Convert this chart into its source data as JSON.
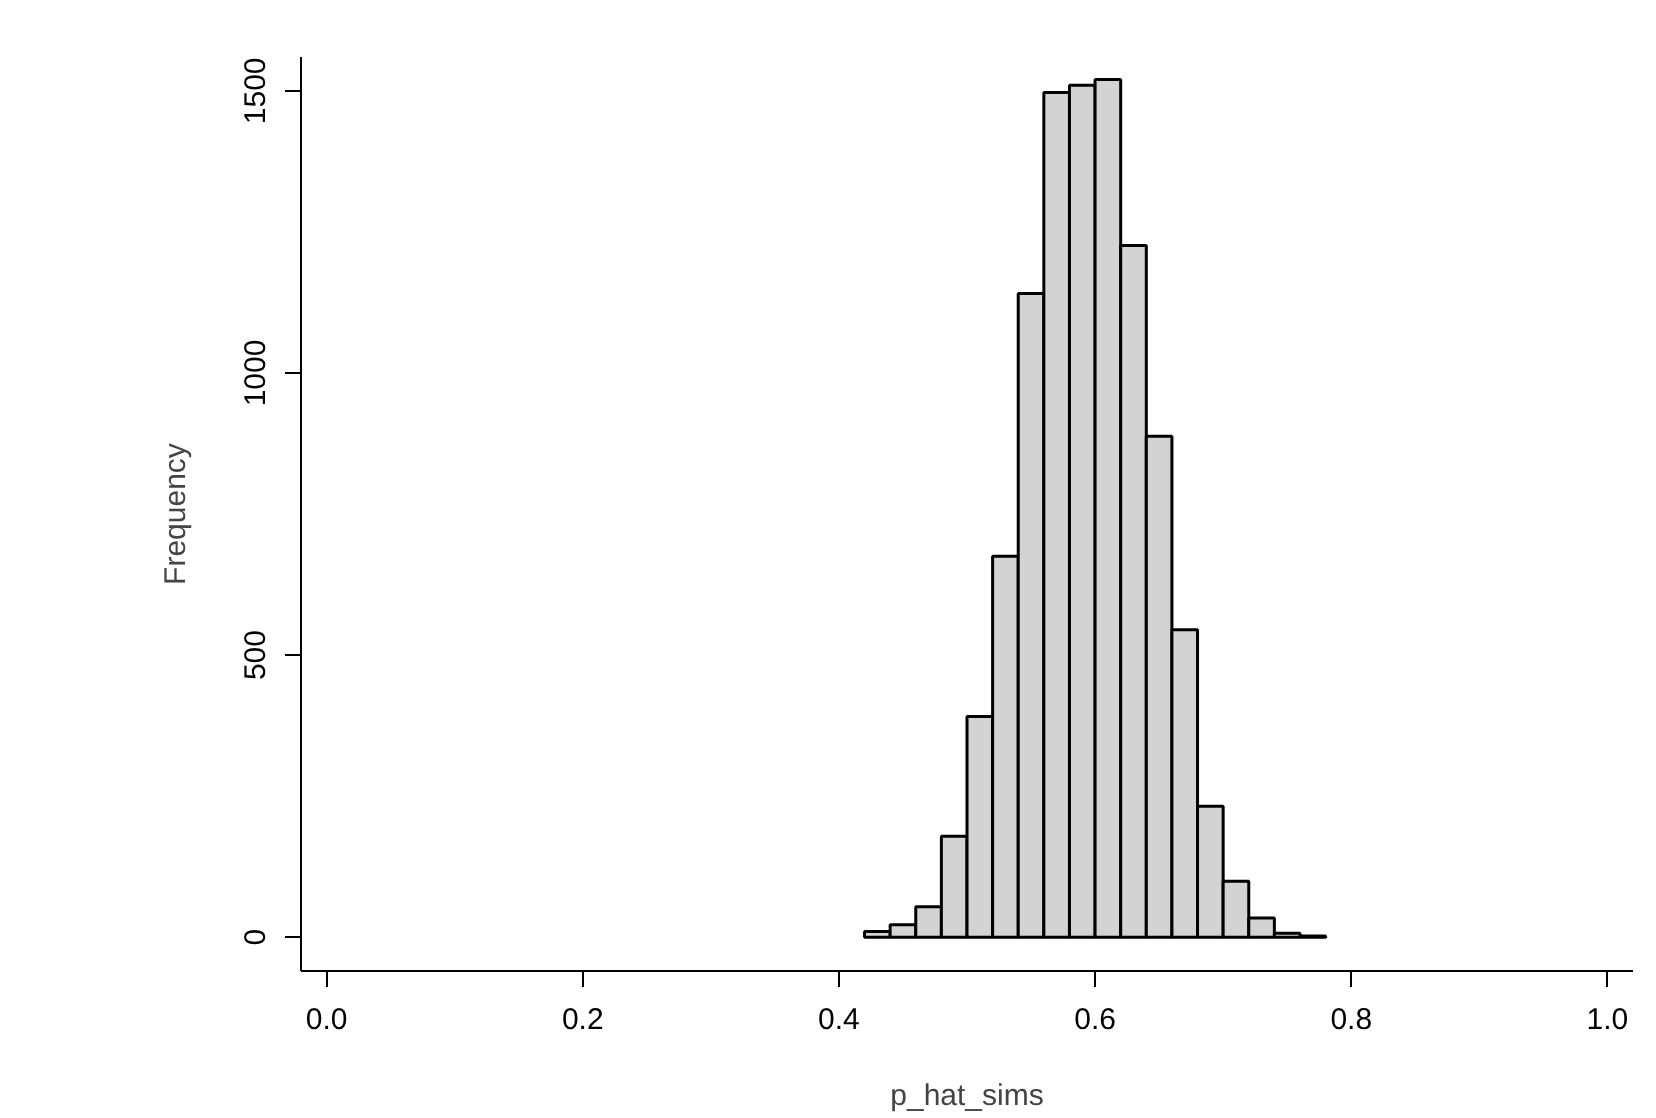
{
  "chart_data": {
    "type": "histogram",
    "xlabel": "p_hat_sims",
    "ylabel": "Frequency",
    "bins": [
      0.42,
      0.44,
      0.46,
      0.48,
      0.5,
      0.52,
      0.54,
      0.56,
      0.58,
      0.6,
      0.62,
      0.64,
      0.66,
      0.68,
      0.7,
      0.72,
      0.74,
      0.76,
      0.78,
      0.8
    ],
    "values": [
      10,
      22,
      54,
      179,
      391,
      675,
      1141,
      1497,
      1510,
      1520,
      1226,
      888,
      545,
      232,
      99,
      34,
      7,
      2,
      null
    ],
    "color": "#d3d3d3",
    "xlim": [
      -0.02,
      1.02
    ],
    "ylim": [
      -60,
      1560
    ],
    "xticks": [
      {
        "value": 0,
        "label": "0.0"
      },
      0.2,
      0.4,
      0.6,
      0.8,
      {
        "value": 1,
        "label": "1.0"
      }
    ],
    "yticks": [
      0,
      500,
      1000,
      1500
    ],
    "grid": false
  }
}
